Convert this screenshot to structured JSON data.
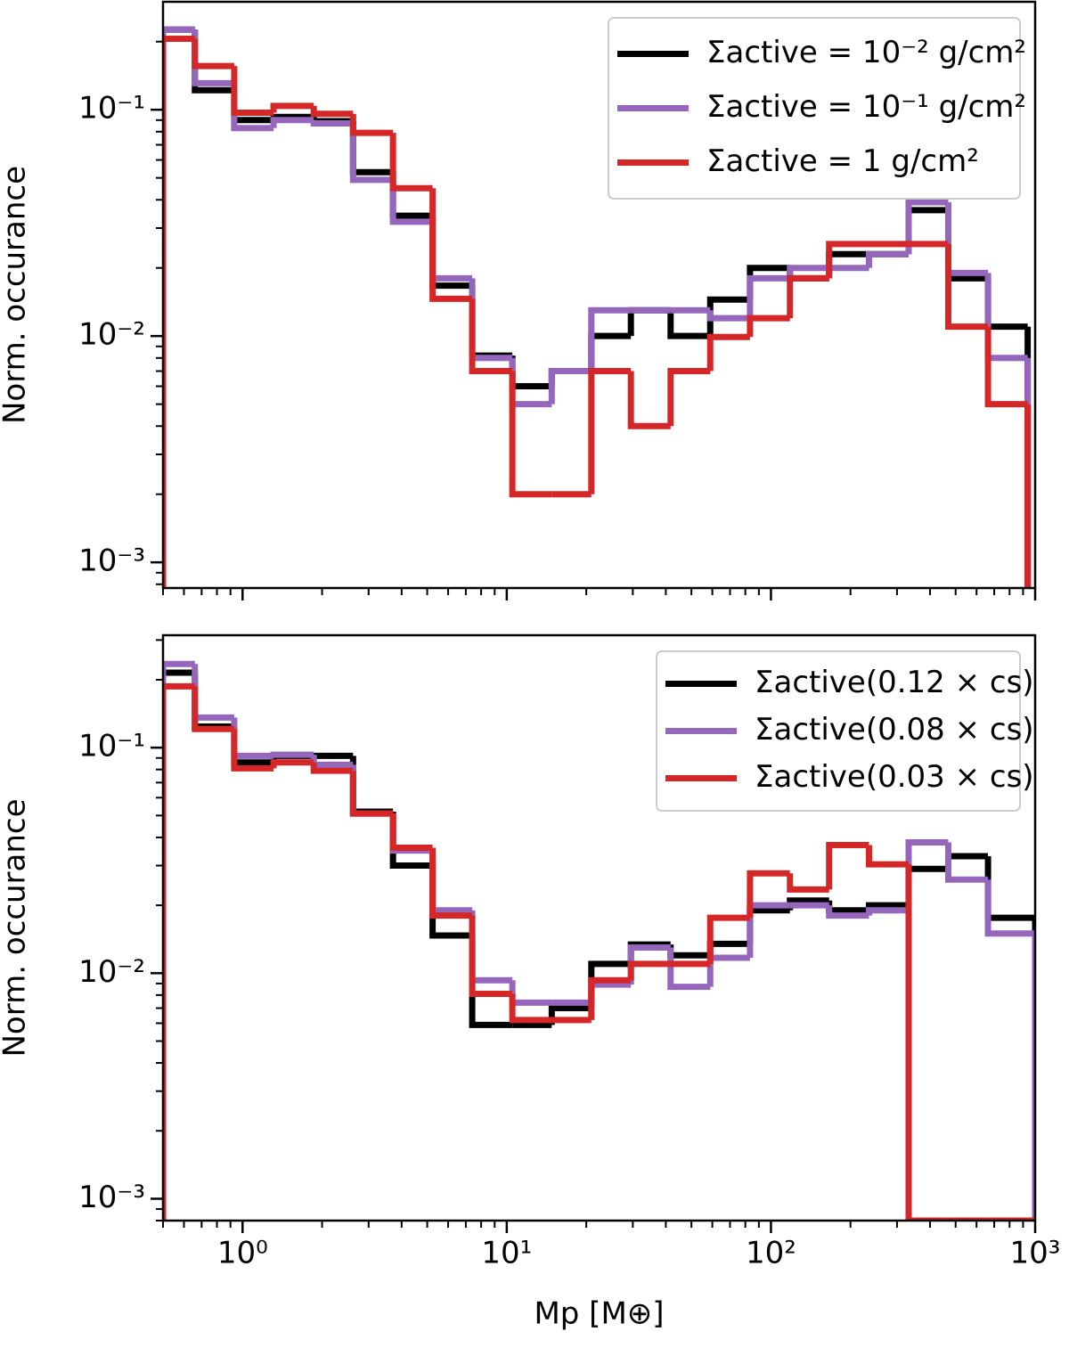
{
  "chart_data": [
    {
      "type": "histogram",
      "ylabel": "Norm. occurance",
      "log_x": true,
      "log_y": true,
      "legend": "upper right",
      "xlim": [
        0.5,
        1000
      ],
      "ylim": [
        0.00077,
        0.3
      ],
      "xticks": [
        1,
        10,
        100,
        1000
      ],
      "yticks": [
        {
          "value": 0.001,
          "label": "10⁻³"
        },
        {
          "value": 0.01,
          "label": "10⁻²"
        },
        {
          "value": 0.1,
          "label": "10⁻¹"
        }
      ],
      "bins": [
        0.5,
        0.66,
        0.93,
        1.31,
        1.86,
        2.62,
        3.71,
        5.24,
        7.4,
        10.5,
        14.8,
        20.9,
        29.5,
        41.7,
        58.9,
        83.3,
        118,
        166,
        235,
        332,
        469,
        663,
        937
      ],
      "series": [
        {
          "name": "Σactive = 10⁻² g/cm²",
          "color": "#000000",
          "values": [
            0.226,
            0.122,
            0.09,
            0.093,
            0.089,
            0.053,
            0.034,
            0.0167,
            0.0082,
            0.006,
            0.007,
            0.01,
            0.013,
            0.01,
            0.0145,
            0.02,
            0.018,
            0.023,
            0.023,
            0.036,
            0.018,
            0.011
          ]
        },
        {
          "name": "Σactive = 10⁻¹ g/cm²",
          "color": "#9467bd",
          "values": [
            0.226,
            0.131,
            0.083,
            0.09,
            0.087,
            0.049,
            0.032,
            0.018,
            0.008,
            0.005,
            0.007,
            0.013,
            0.013,
            0.013,
            0.012,
            0.018,
            0.02,
            0.02,
            0.023,
            0.039,
            0.019,
            0.008
          ]
        },
        {
          "name": "Σactive = 1 g/cm²",
          "color": "#d62728",
          "values": [
            0.206,
            0.156,
            0.097,
            0.104,
            0.096,
            0.079,
            0.045,
            0.0146,
            0.007,
            0.002,
            0.002,
            0.007,
            0.004,
            0.007,
            0.0099,
            0.012,
            0.018,
            0.0255,
            0.0255,
            0.0255,
            0.011,
            0.005
          ]
        }
      ]
    },
    {
      "type": "histogram",
      "ylabel": "Norm. occurance",
      "xlabel": "Mp [M⊕]",
      "log_x": true,
      "log_y": true,
      "legend": "upper right",
      "xlim": [
        0.5,
        1000
      ],
      "ylim": [
        0.0008,
        0.315
      ],
      "xticks": [
        {
          "value": 1,
          "label": "10⁰"
        },
        {
          "value": 10,
          "label": "10¹"
        },
        {
          "value": 100,
          "label": "10²"
        },
        {
          "value": 1000,
          "label": "10³"
        }
      ],
      "yticks": [
        {
          "value": 0.001,
          "label": "10⁻³"
        },
        {
          "value": 0.01,
          "label": "10⁻²"
        },
        {
          "value": 0.1,
          "label": "10⁻¹"
        }
      ],
      "bins": [
        0.5,
        0.66,
        0.93,
        1.31,
        1.86,
        2.62,
        3.71,
        5.24,
        7.4,
        10.5,
        14.8,
        20.9,
        29.5,
        41.7,
        58.9,
        83.3,
        118,
        166,
        235,
        332,
        469,
        663,
        1000
      ],
      "series": [
        {
          "name": "Σactive(0.12 × cs)",
          "color": "#000000",
          "values": [
            0.215,
            0.124,
            0.086,
            0.092,
            0.092,
            0.052,
            0.03,
            0.0147,
            0.0059,
            0.0059,
            0.007,
            0.011,
            0.0134,
            0.012,
            0.0135,
            0.019,
            0.021,
            0.019,
            0.02,
            0.029,
            0.033,
            0.0176
          ]
        },
        {
          "name": "Σactive(0.08 × cs)",
          "color": "#9467bd",
          "values": [
            0.235,
            0.136,
            0.092,
            0.093,
            0.084,
            0.051,
            0.035,
            0.019,
            0.0093,
            0.0074,
            0.0074,
            0.0089,
            0.013,
            0.0087,
            0.0117,
            0.02,
            0.02,
            0.018,
            0.019,
            0.038,
            0.026,
            0.015
          ]
        },
        {
          "name": "Σactive(0.03 × cs)",
          "color": "#d62728",
          "values": [
            0.187,
            0.121,
            0.081,
            0.086,
            0.079,
            0.051,
            0.036,
            0.018,
            0.0081,
            0.0062,
            0.0062,
            0.0093,
            0.011,
            0.011,
            0.0176,
            0.0277,
            0.0235,
            0.037,
            0.0304,
            0,
            0,
            0
          ]
        }
      ]
    }
  ]
}
